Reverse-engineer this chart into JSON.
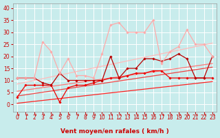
{
  "title": "",
  "xlabel": "Vent moyen/en rafales ( km/h )",
  "ylabel": "",
  "xlim": [
    -0.5,
    23.5
  ],
  "ylim": [
    -3,
    42
  ],
  "yticks": [
    0,
    5,
    10,
    15,
    20,
    25,
    30,
    35,
    40
  ],
  "xticks": [
    0,
    1,
    2,
    3,
    4,
    5,
    6,
    7,
    8,
    9,
    10,
    11,
    12,
    13,
    14,
    15,
    16,
    17,
    18,
    19,
    20,
    21,
    22,
    23
  ],
  "bg_color": "#c8ecec",
  "grid_color": "#ffffff",
  "lines": [
    {
      "x": [
        0,
        1,
        2,
        3,
        4,
        5,
        6,
        7,
        8,
        9,
        10,
        11,
        12,
        13,
        14,
        15,
        16,
        17,
        18,
        19,
        20,
        21,
        22,
        23
      ],
      "y": [
        3,
        8,
        8,
        8,
        8,
        1,
        7,
        8,
        8,
        9,
        10,
        11,
        11,
        12,
        13,
        13,
        14,
        14,
        11,
        11,
        11,
        11,
        11,
        11
      ],
      "color": "#ee0000",
      "lw": 0.9,
      "marker": "D",
      "ms": 1.8,
      "alpha": 1.0,
      "zorder": 4
    },
    {
      "x": [
        0,
        1,
        2,
        3,
        4,
        5,
        6,
        7,
        8,
        9,
        10,
        11,
        12,
        13,
        14,
        15,
        16,
        17,
        18,
        19,
        20,
        21,
        22,
        23
      ],
      "y": [
        11,
        11,
        11,
        9,
        8,
        13,
        10,
        10,
        10,
        10,
        10,
        20,
        11,
        15,
        15,
        19,
        19,
        18,
        19,
        21,
        19,
        11,
        11,
        20
      ],
      "color": "#bb0000",
      "lw": 0.9,
      "marker": "D",
      "ms": 1.8,
      "alpha": 1.0,
      "zorder": 4
    },
    {
      "x": [
        0,
        1,
        2,
        3,
        4,
        5,
        6,
        7,
        8,
        9,
        10,
        11,
        12,
        13,
        14,
        15,
        16,
        17,
        18,
        19,
        20,
        21,
        22,
        23
      ],
      "y": [
        11,
        11,
        11,
        26,
        22,
        13,
        19,
        12,
        12,
        11,
        21,
        33,
        34,
        30,
        30,
        30,
        35,
        17,
        22,
        24,
        31,
        25,
        25,
        20
      ],
      "color": "#ffaaaa",
      "lw": 0.9,
      "marker": "D",
      "ms": 1.8,
      "alpha": 1.0,
      "zorder": 4
    },
    {
      "x": [
        0,
        23
      ],
      "y": [
        0.5,
        9.5
      ],
      "color": "#ff2222",
      "lw": 0.9,
      "marker": null,
      "ms": 0,
      "alpha": 1.0,
      "zorder": 2
    },
    {
      "x": [
        0,
        23
      ],
      "y": [
        3.5,
        15.5
      ],
      "color": "#ee4444",
      "lw": 0.9,
      "marker": null,
      "ms": 0,
      "alpha": 1.0,
      "zorder": 2
    },
    {
      "x": [
        0,
        23
      ],
      "y": [
        5.5,
        17.0
      ],
      "color": "#ff7777",
      "lw": 0.9,
      "marker": null,
      "ms": 0,
      "alpha": 1.0,
      "zorder": 2
    },
    {
      "x": [
        0,
        23
      ],
      "y": [
        8.5,
        25.5
      ],
      "color": "#ffbbbb",
      "lw": 0.9,
      "marker": null,
      "ms": 0,
      "alpha": 1.0,
      "zorder": 2
    }
  ],
  "arrow_color": "#cc0000",
  "xlabel_color": "#cc0000",
  "xlabel_fontsize": 6.5,
  "tick_color": "#cc0000",
  "tick_fontsize": 5.5,
  "ylabel_fontsize": 5.5
}
